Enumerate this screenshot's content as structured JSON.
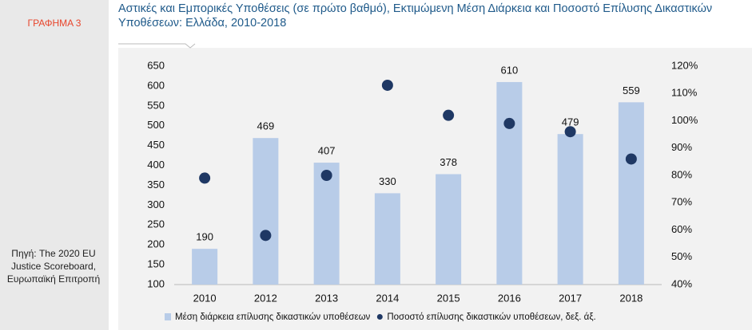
{
  "label": "ΓΡΑΦΗΜΑ 3",
  "source": "Πηγή: The 2020 EU Justice Scoreboard, Ευρωπαϊκή Επιτροπή",
  "chart_data": {
    "type": "bar",
    "title": "Αστικές και Εμπορικές Υποθέσεις (σε πρώτο βαθμό), Εκτιμώμενη Μέση Διάρκεια και Ποσοστό Επίλυσης Δικαστικών Υποθέσεων: Ελλάδα, 2010-2018",
    "categories": [
      "2010",
      "2012",
      "2013",
      "2014",
      "2015",
      "2016",
      "2017",
      "2018"
    ],
    "series": [
      {
        "name": "Μέση διάρκεια επίλυσης δικαστικών υποθέσεων",
        "color": "#b8cce8",
        "values": [
          190,
          469,
          407,
          330,
          378,
          610,
          479,
          559
        ]
      },
      {
        "name": "Ποσοστό επίλυσης δικαστικών υποθέσεων, δεξ. άξ.",
        "color": "#1f3864",
        "type": "scatter",
        "axis": "y2",
        "values": [
          79,
          58,
          80,
          113,
          102,
          99,
          96,
          86
        ]
      }
    ],
    "ylim": [
      100,
      650
    ],
    "yticks": [
      100,
      150,
      200,
      250,
      300,
      350,
      400,
      450,
      500,
      550,
      600,
      650
    ],
    "y2lim": [
      40,
      120
    ],
    "y2ticks": [
      {
        "value": 40,
        "label": "40%"
      },
      {
        "value": 50,
        "label": "50%"
      },
      {
        "value": 60,
        "label": "60%"
      },
      {
        "value": 70,
        "label": "70%"
      },
      {
        "value": 80,
        "label": "80%"
      },
      {
        "value": 90,
        "label": "90%"
      },
      {
        "value": 100,
        "label": "100%"
      },
      {
        "value": 110,
        "label": "110%"
      },
      {
        "value": 120,
        "label": "120%"
      }
    ],
    "legend": "bottom"
  }
}
